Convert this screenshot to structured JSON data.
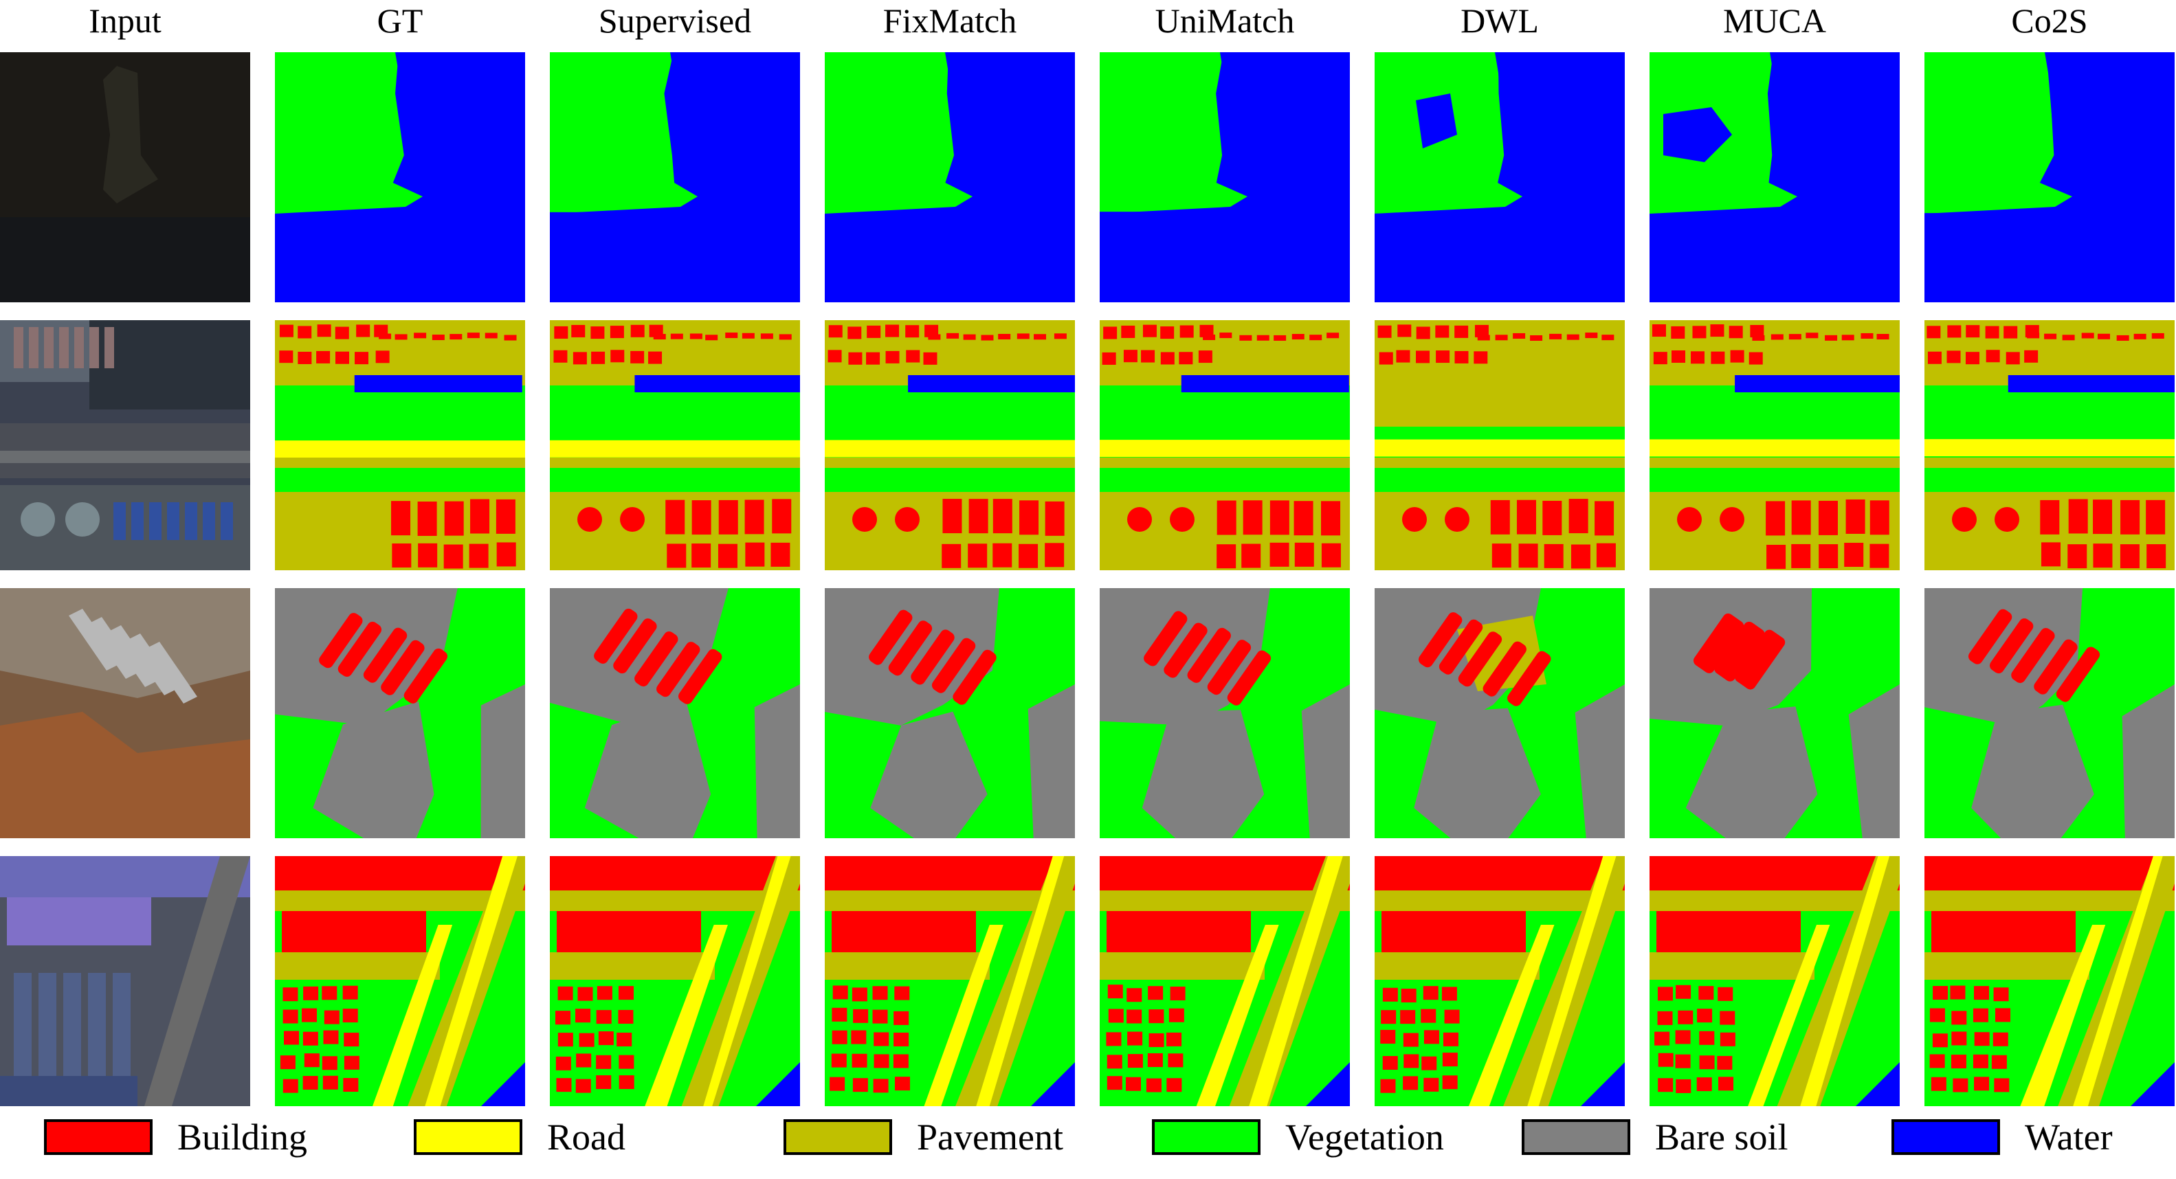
{
  "columns": [
    "Input",
    "GT",
    "Supervised",
    "FixMatch",
    "UniMatch",
    "DWL",
    "MUCA",
    "Co2S"
  ],
  "rows": [
    "row-1-lake",
    "row-2-urban-river",
    "row-3-bare-soil-site",
    "row-4-urban-roads"
  ],
  "classes": [
    {
      "key": "building",
      "label": "Building",
      "color": "#ff0000"
    },
    {
      "key": "road",
      "label": "Road",
      "color": "#ffff00"
    },
    {
      "key": "pavement",
      "label": "Pavement",
      "color": "#c0c000"
    },
    {
      "key": "vegetation",
      "label": "Vegetation",
      "color": "#00ff00"
    },
    {
      "key": "bare_soil",
      "label": "Bare soil",
      "color": "#808080"
    },
    {
      "key": "water",
      "label": "Water",
      "color": "#0000ff"
    }
  ]
}
